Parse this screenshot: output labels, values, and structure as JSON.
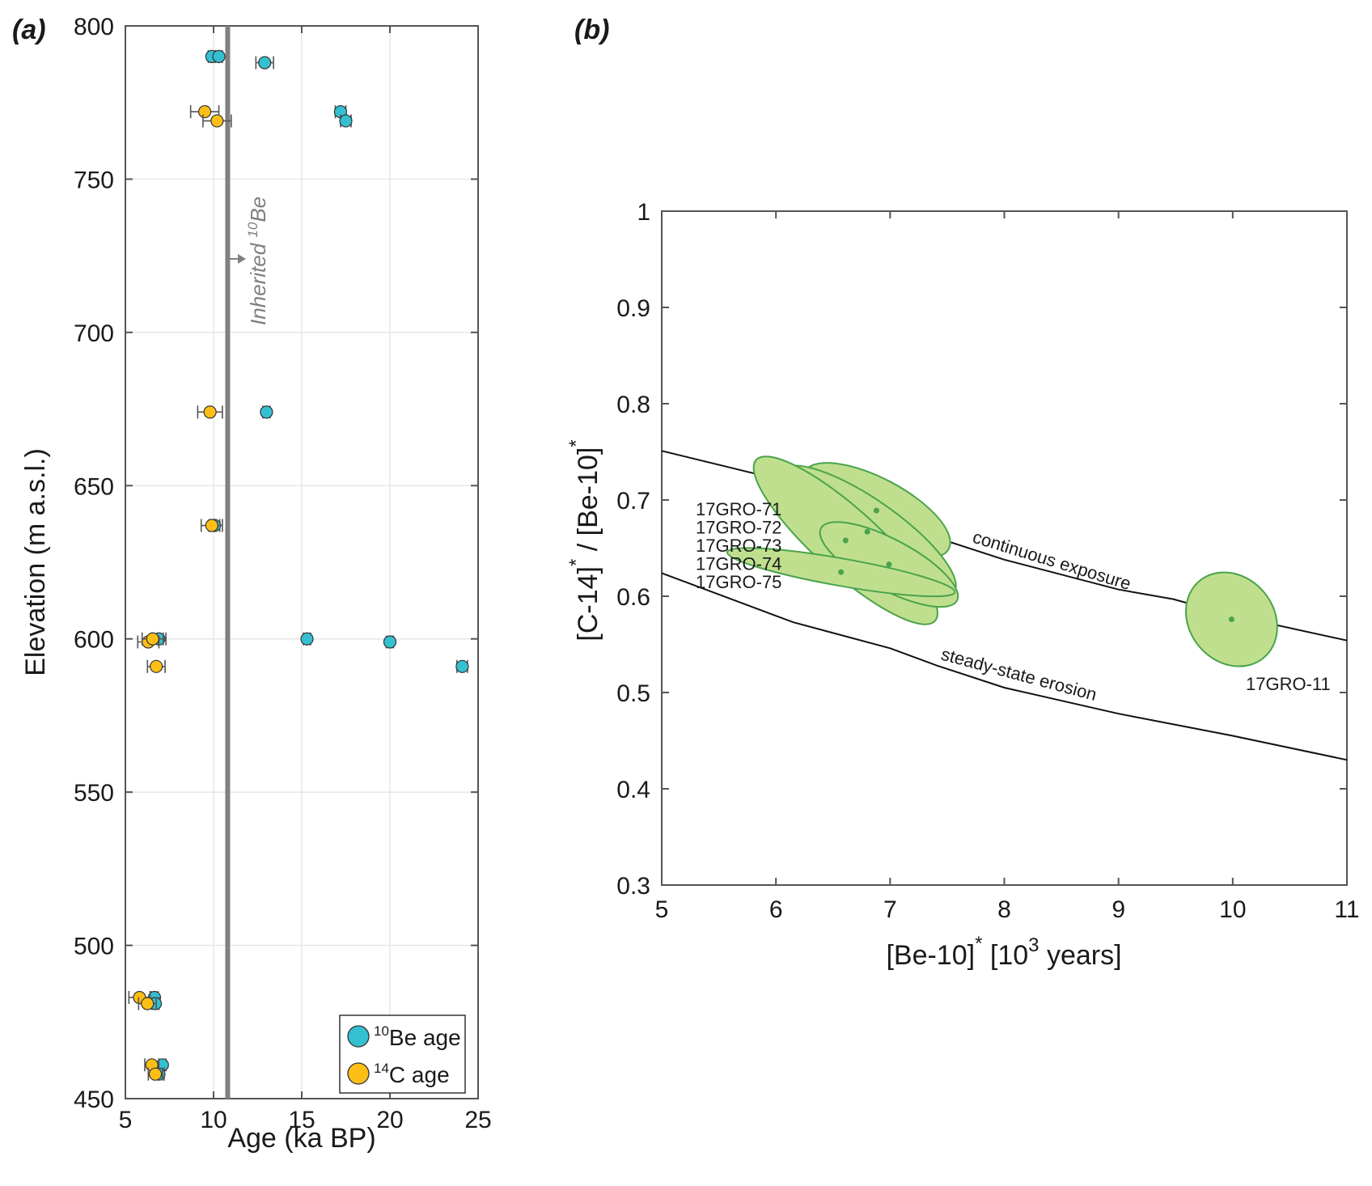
{
  "chart_data": [
    {
      "panel": "(a)",
      "type": "scatter",
      "xlabel": "Age (ka BP)",
      "ylabel": "Elevation (m a.s.l.)",
      "xlim": [
        5,
        25
      ],
      "ylim": [
        450,
        800
      ],
      "xticks": [
        5,
        10,
        15,
        20,
        25
      ],
      "yticks": [
        450,
        500,
        550,
        600,
        650,
        700,
        750,
        800
      ],
      "grid": true,
      "legend_position": "bottom-right",
      "series": [
        {
          "name": "10Be age",
          "legend_sup": "10",
          "legend_text": "Be age",
          "color": "#35c0d1",
          "points": [
            {
              "x": 9.9,
              "y": 790,
              "err": 0.2
            },
            {
              "x": 10.3,
              "y": 790,
              "err": 0.2
            },
            {
              "x": 12.9,
              "y": 788,
              "err": 0.5
            },
            {
              "x": 17.2,
              "y": 772,
              "err": 0.3
            },
            {
              "x": 17.5,
              "y": 769,
              "err": 0.3
            },
            {
              "x": 13.0,
              "y": 674,
              "err": 0.2
            },
            {
              "x": 10.05,
              "y": 637,
              "err": 0.3
            },
            {
              "x": 6.9,
              "y": 600,
              "err": 0.4
            },
            {
              "x": 15.3,
              "y": 600,
              "err": 0.2
            },
            {
              "x": 20.0,
              "y": 599,
              "err": 0.2
            },
            {
              "x": 24.1,
              "y": 591,
              "err": 0.3
            },
            {
              "x": 6.65,
              "y": 483,
              "err": 0.2
            },
            {
              "x": 6.7,
              "y": 481,
              "err": 0.2
            },
            {
              "x": 7.1,
              "y": 461,
              "err": 0.2
            },
            {
              "x": 6.9,
              "y": 458,
              "err": 0.3
            }
          ]
        },
        {
          "name": "14C age",
          "legend_sup": "14",
          "legend_text": "C age",
          "color": "#fdbf16",
          "points": [
            {
              "x": 9.5,
              "y": 772,
              "err": 0.8
            },
            {
              "x": 10.2,
              "y": 769,
              "err": 0.8
            },
            {
              "x": 9.8,
              "y": 674,
              "err": 0.7
            },
            {
              "x": 9.9,
              "y": 637,
              "err": 0.6
            },
            {
              "x": 6.3,
              "y": 599,
              "err": 0.6
            },
            {
              "x": 6.55,
              "y": 600,
              "err": 0.6
            },
            {
              "x": 6.75,
              "y": 591,
              "err": 0.5
            },
            {
              "x": 5.8,
              "y": 483,
              "err": 0.6
            },
            {
              "x": 6.25,
              "y": 481,
              "err": 0.5
            },
            {
              "x": 6.5,
              "y": 461,
              "err": 0.4
            },
            {
              "x": 6.7,
              "y": 458,
              "err": 0.4
            }
          ]
        }
      ],
      "reference_line": {
        "x": 10.8,
        "color": "#808080"
      },
      "annotation": {
        "text_prefix": "Inherited ",
        "sup": "10",
        "text_suffix": "Be"
      }
    },
    {
      "panel": "(b)",
      "type": "line",
      "xlabel_main": "[Be-10]",
      "xlabel_star": "*",
      "xlabel_rest": " [10",
      "xlabel_sup": "3",
      "xlabel_end": " years]",
      "ylabel_part1": "[C-14]",
      "ylabel_part2": " / [Be-10]",
      "ylabel_star": "*",
      "xlim": [
        5,
        11
      ],
      "ylim": [
        0.3,
        1
      ],
      "xticks": [
        5,
        6,
        7,
        8,
        9,
        10,
        11
      ],
      "yticks": [
        0.3,
        0.4,
        0.5,
        0.6,
        0.7,
        0.8,
        0.9,
        1
      ],
      "ytick_labels": [
        "0.3",
        "0.4",
        "0.5",
        "0.6",
        "0.7",
        "0.8",
        "0.9",
        "1"
      ],
      "grid": false,
      "curves": [
        {
          "name": "continuous exposure",
          "x": [
            5,
            6,
            7,
            7.35,
            8,
            9,
            9.48,
            10,
            11
          ],
          "y": [
            0.751,
            0.722,
            0.676,
            0.663,
            0.638,
            0.607,
            0.597,
            0.58,
            0.554
          ]
        },
        {
          "name": "steady-state erosion",
          "x": [
            5,
            6.15,
            7,
            7.41,
            8,
            9,
            10,
            11
          ],
          "y": [
            0.624,
            0.573,
            0.546,
            0.528,
            0.505,
            0.478,
            0.455,
            0.43
          ]
        }
      ],
      "ellipse_color": "#bfdf8f",
      "ellipse_edge": "#4aa34a",
      "samples": [
        {
          "name": "17GRO-71",
          "x": 6.88,
          "y": 0.689,
          "rx": 0.28,
          "ry": 0.085,
          "angle": -62
        },
        {
          "name": "17GRO-72",
          "x": 6.8,
          "y": 0.667,
          "rx": 0.28,
          "ry": 0.11,
          "angle": -55
        },
        {
          "name": "17GRO-73",
          "x": 6.61,
          "y": 0.658,
          "rx": 0.28,
          "ry": 0.125,
          "angle": -48
        },
        {
          "name": "17GRO-74",
          "x": 6.99,
          "y": 0.633,
          "rx": 0.22,
          "ry": 0.08,
          "angle": -62
        },
        {
          "name": "17GRO-75",
          "x": 6.57,
          "y": 0.625,
          "rx": 0.12,
          "ry": 0.12,
          "angle": -80
        },
        {
          "name": "17GRO-11",
          "x": 9.99,
          "y": 0.576,
          "rx": 0.37,
          "ry": 0.052,
          "angle": -40
        }
      ],
      "group_labels": [
        "17GRO-71",
        "17GRO-72",
        "17GRO-73",
        "17GRO-74",
        "17GRO-75"
      ],
      "single_label": "17GRO-11"
    }
  ]
}
